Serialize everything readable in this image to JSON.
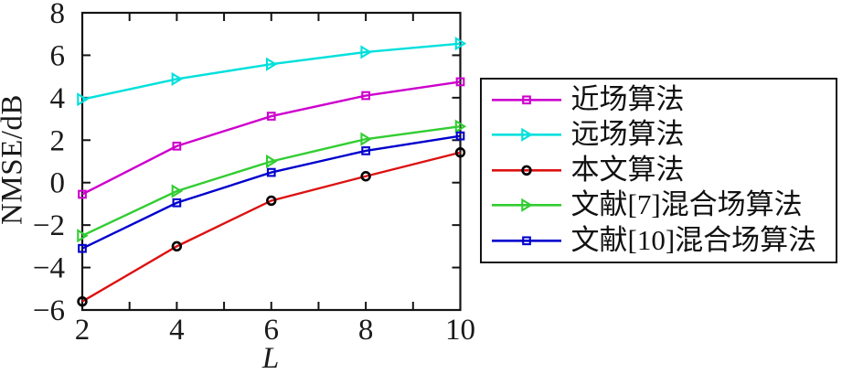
{
  "figure": {
    "background": "#ffffff",
    "axis_color": "#141414",
    "text_color": "#1a1a1a"
  },
  "chart_data": {
    "type": "line",
    "title": "",
    "xlabel": "L",
    "ylabel": "NMSE/dB",
    "xlim": [
      2,
      10
    ],
    "ylim": [
      -6,
      8
    ],
    "x_ticks": [
      2,
      3,
      4,
      5,
      6,
      7,
      8,
      9,
      10
    ],
    "x_tick_labels": [
      "2",
      "",
      "4",
      "",
      "6",
      "",
      "8",
      "",
      "10"
    ],
    "y_ticks": [
      -6,
      -4,
      -2,
      0,
      2,
      4,
      6,
      8
    ],
    "y_tick_labels": [
      "−6",
      "−4",
      "−2",
      "0",
      "2",
      "4",
      "6",
      "8"
    ],
    "grid": false,
    "legend_position": "right-outside",
    "x": [
      2,
      4,
      6,
      8,
      10
    ],
    "series": [
      {
        "name": "近场算法",
        "color": "#CD00CD",
        "marker": "square",
        "marker_edge": "#CD00CD",
        "values": [
          -0.55,
          1.72,
          3.13,
          4.1,
          4.75
        ]
      },
      {
        "name": "远场算法",
        "color": "#00E0DC",
        "marker": "triangle-right",
        "marker_edge": "#00E0DC",
        "values": [
          3.92,
          4.88,
          5.58,
          6.15,
          6.55
        ]
      },
      {
        "name": "本文算法",
        "color": "#DD1111",
        "marker": "circle",
        "marker_edge": "#000000",
        "values": [
          -5.6,
          -3.0,
          -0.85,
          0.3,
          1.42
        ]
      },
      {
        "name": "文献[7]混合场算法",
        "color": "#32CD32",
        "marker": "triangle-right",
        "marker_edge": "#32CD32",
        "values": [
          -2.5,
          -0.4,
          1.0,
          2.05,
          2.65
        ]
      },
      {
        "name": "文献[10]混合场算法",
        "color": "#0000CD",
        "marker": "square",
        "marker_edge": "#0000CD",
        "values": [
          -3.1,
          -0.95,
          0.48,
          1.5,
          2.2
        ]
      }
    ]
  },
  "legend": {
    "entries": [
      {
        "label": "近场算法"
      },
      {
        "label": "远场算法"
      },
      {
        "label": "本文算法"
      },
      {
        "label": "文献[7]混合场算法"
      },
      {
        "label": "文献[10]混合场算法"
      }
    ]
  }
}
